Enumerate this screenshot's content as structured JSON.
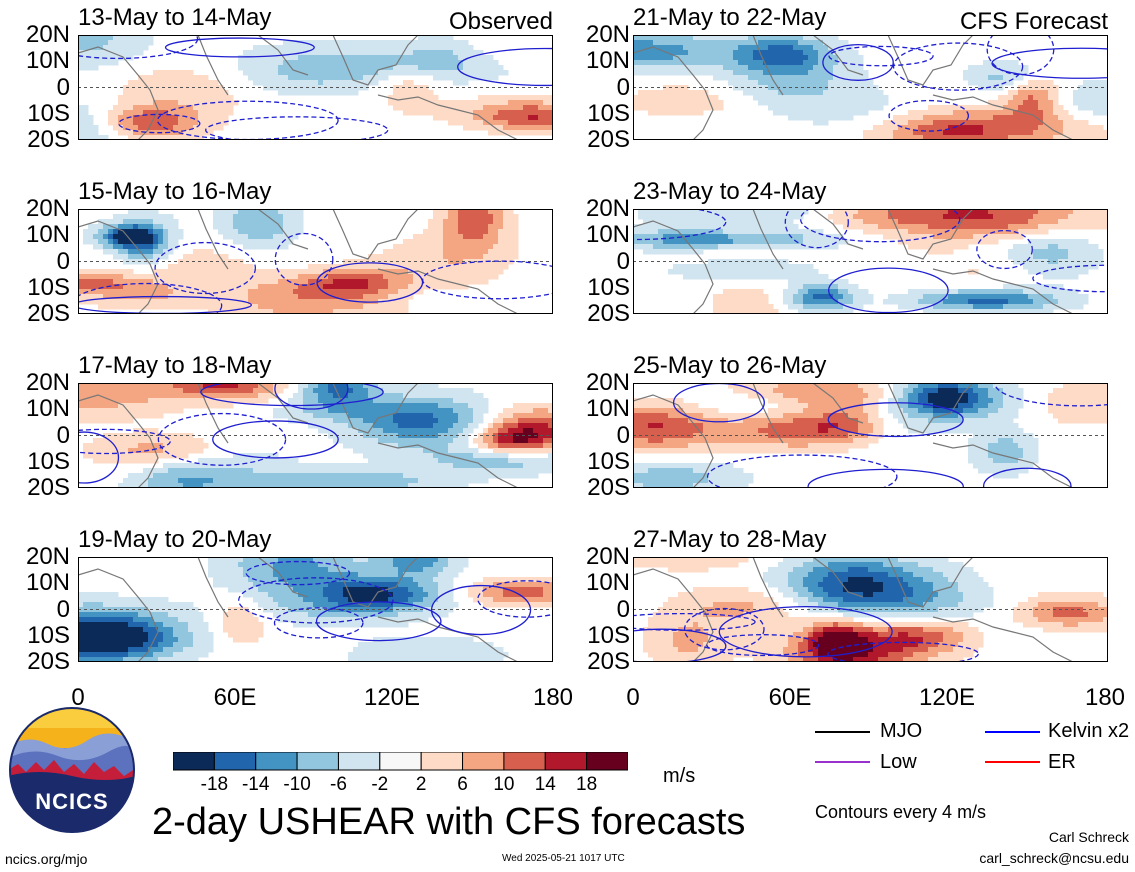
{
  "panels": [
    {
      "title": "13-May to 14-May",
      "corner": "Observed",
      "seed": 1
    },
    {
      "title": "15-May to 16-May",
      "corner": "",
      "seed": 2
    },
    {
      "title": "17-May to 18-May",
      "corner": "",
      "seed": 3
    },
    {
      "title": "19-May to 20-May",
      "corner": "",
      "seed": 4
    },
    {
      "title": "21-May to 22-May",
      "corner": "CFS Forecast",
      "seed": 5
    },
    {
      "title": "23-May to 24-May",
      "corner": "",
      "seed": 6
    },
    {
      "title": "25-May to 26-May",
      "corner": "",
      "seed": 7
    },
    {
      "title": "27-May to 28-May",
      "corner": "",
      "seed": 8
    }
  ],
  "lat_labels": [
    "20N",
    "10N",
    "0",
    "10S",
    "20S"
  ],
  "lon_labels": [
    "0",
    "60E",
    "120E",
    "180"
  ],
  "colorbar": {
    "ticks": [
      "-18",
      "-14",
      "-10",
      "-6",
      "-2",
      "2",
      "6",
      "10",
      "14",
      "18"
    ],
    "unit": "m/s",
    "colors": [
      "#0b2a58",
      "#2166ac",
      "#4393c3",
      "#92c5de",
      "#d1e5f0",
      "#f7f7f7",
      "#fddbc7",
      "#f4a582",
      "#d6604d",
      "#b2182b",
      "#67001f"
    ]
  },
  "legend": {
    "items": [
      {
        "label": "MJO",
        "color": "#000000"
      },
      {
        "label": "Kelvin x2",
        "color": "#0000ff"
      },
      {
        "label": "Low",
        "color": "#9932cc"
      },
      {
        "label": "ER",
        "color": "#ff0000"
      }
    ],
    "contour_note": "Contours every 4 m/s"
  },
  "logo_text": "NCICS",
  "main_title": "2-day USHEAR with CFS forecasts",
  "footer": {
    "url": "ncics.org/mjo",
    "timestamp": "Wed 2025-05-21 1017 UTC",
    "author": "Carl Schreck",
    "email": "carl_schreck@ncsu.edu"
  }
}
